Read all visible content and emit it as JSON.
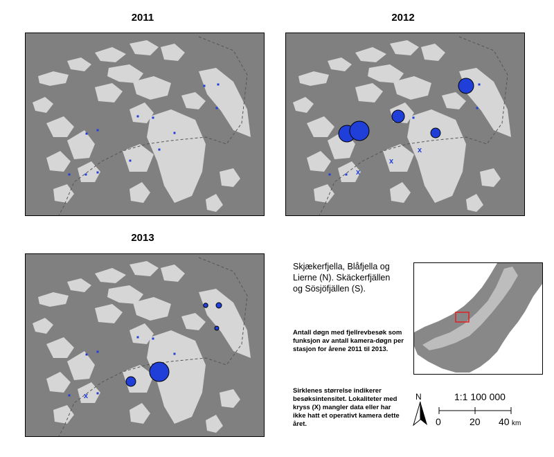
{
  "panels": [
    {
      "title": "2011",
      "marker_color": "#1f3fd8"
    },
    {
      "title": "2012",
      "marker_color": "#1f3fd8"
    },
    {
      "title": "2013",
      "marker_color": "#1f3fd8"
    }
  ],
  "legend": {
    "area_title": "Skjækerfjella, Blåfjella og Lierne (N). Skäckerfjällen og Sösjöfjällen (S).",
    "description": "Antall døgn med fjellrevbesøk som funksjon av antall kamera-døgn per stasjon for årene 2011 til 2013.",
    "size_note": "Sirklenes størrelse indikerer besøksintensitet. Lokaliteter med kryss (X) mangler data eller har ikke hatt et operativt kamera dette året."
  },
  "north_arrow": {
    "label": "N"
  },
  "scale_bar": {
    "ratio": "1:1 100 000",
    "ticks": [
      "0",
      "20",
      "40"
    ],
    "unit": "km"
  },
  "colors": {
    "background": "#808080",
    "mountain": "#d6d6d6",
    "marker": "#1f3fd8",
    "inset_box": "#e02020"
  }
}
